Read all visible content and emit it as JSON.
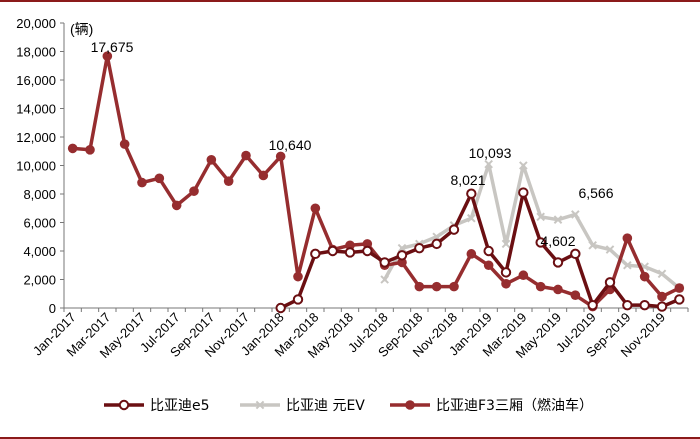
{
  "chart_data": {
    "type": "line",
    "unit_label": "(辆)",
    "ylim": [
      0,
      20000
    ],
    "yticks": [
      "0",
      "2,000",
      "4,000",
      "6,000",
      "8,000",
      "10,000",
      "12,000",
      "14,000",
      "16,000",
      "18,000",
      "20,000"
    ],
    "xtick_labels": [
      "Jan-2017",
      "Mar-2017",
      "May-2017",
      "Jul-2017",
      "Sep-2017",
      "Nov-2017",
      "Jan-2018",
      "Mar-2018",
      "May-2018",
      "Jul-2018",
      "Sep-2018",
      "Nov-2018",
      "Jan-2019",
      "Mar-2019",
      "May-2019",
      "Jul-2019",
      "Sep-2019",
      "Nov-2019"
    ],
    "x": [
      "2017-01",
      "2017-02",
      "2017-03",
      "2017-04",
      "2017-05",
      "2017-06",
      "2017-07",
      "2017-08",
      "2017-09",
      "2017-10",
      "2017-11",
      "2017-12",
      "2018-01",
      "2018-02",
      "2018-03",
      "2018-04",
      "2018-05",
      "2018-06",
      "2018-07",
      "2018-08",
      "2018-09",
      "2018-10",
      "2018-11",
      "2018-12",
      "2019-01",
      "2019-02",
      "2019-03",
      "2019-04",
      "2019-05",
      "2019-06",
      "2019-07",
      "2019-08",
      "2019-09",
      "2019-10",
      "2019-11",
      "2019-12"
    ],
    "series": [
      {
        "name": "比亚迪e5",
        "color": "#6b0f12",
        "marker": "open-circle",
        "values": [
          null,
          null,
          null,
          null,
          null,
          null,
          null,
          null,
          null,
          null,
          null,
          null,
          0,
          600,
          3800,
          4000,
          3900,
          4000,
          3200,
          3700,
          4200,
          4500,
          5500,
          8021,
          4000,
          2500,
          8100,
          4600,
          3200,
          3800,
          200,
          1800,
          200,
          200,
          100,
          600
        ]
      },
      {
        "name": "比亚迪 元EV",
        "color": "#c8c6c2",
        "marker": "x",
        "values": [
          null,
          null,
          null,
          null,
          null,
          null,
          null,
          null,
          null,
          null,
          null,
          null,
          null,
          null,
          null,
          null,
          null,
          null,
          2000,
          4200,
          4500,
          5000,
          5800,
          6300,
          10093,
          4500,
          10000,
          6400,
          6200,
          6566,
          4400,
          4100,
          3000,
          2900,
          2400,
          1400
        ]
      },
      {
        "name": "比亚迪F3三厢（燃油车）",
        "color": "#962d2f",
        "marker": "filled-circle",
        "values": [
          11200,
          11100,
          17675,
          11500,
          8800,
          9100,
          7200,
          8200,
          10400,
          8900,
          10700,
          9300,
          10640,
          2200,
          7000,
          4100,
          4400,
          4500,
          3000,
          3200,
          1500,
          1500,
          1500,
          3800,
          3000,
          1700,
          2300,
          1500,
          1300,
          900,
          100,
          1300,
          4900,
          2200,
          800,
          1400
        ]
      }
    ],
    "annotations": [
      {
        "text": "17,675"
      },
      {
        "text": "10,640"
      },
      {
        "text": "10,093"
      },
      {
        "text": "8,021"
      },
      {
        "text": "6,566"
      },
      {
        "text": "4,602"
      }
    ]
  }
}
